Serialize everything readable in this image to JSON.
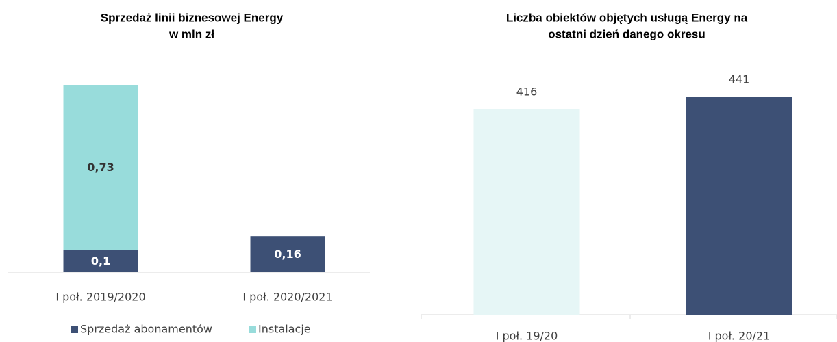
{
  "chart_data": [
    {
      "type": "stacked_bar",
      "title": "Sprzedaż linii biznesowej Energy",
      "subtitle": "w mln zł",
      "categories": [
        "I poł. 2019/2020",
        "I poł. 2020/2021"
      ],
      "series": [
        {
          "name": "Sprzedaż abonamentów",
          "color": "#3d5075",
          "values": [
            0.1,
            0.16
          ],
          "value_labels": [
            "0,1",
            "0,16"
          ]
        },
        {
          "name": "Instalacje",
          "color": "#98dcdb",
          "values": [
            0.73,
            null
          ],
          "value_labels": [
            "0,73",
            null
          ]
        }
      ]
    },
    {
      "type": "bar",
      "title": "Liczba obiektów objętych usługą Energy na",
      "subtitle": "ostatni dzień danego okresu",
      "categories": [
        "I poł. 19/20",
        "I poł. 20/21"
      ],
      "values": [
        416,
        441
      ],
      "colors": [
        "#e6f6f6",
        "#3d5075"
      ]
    }
  ]
}
